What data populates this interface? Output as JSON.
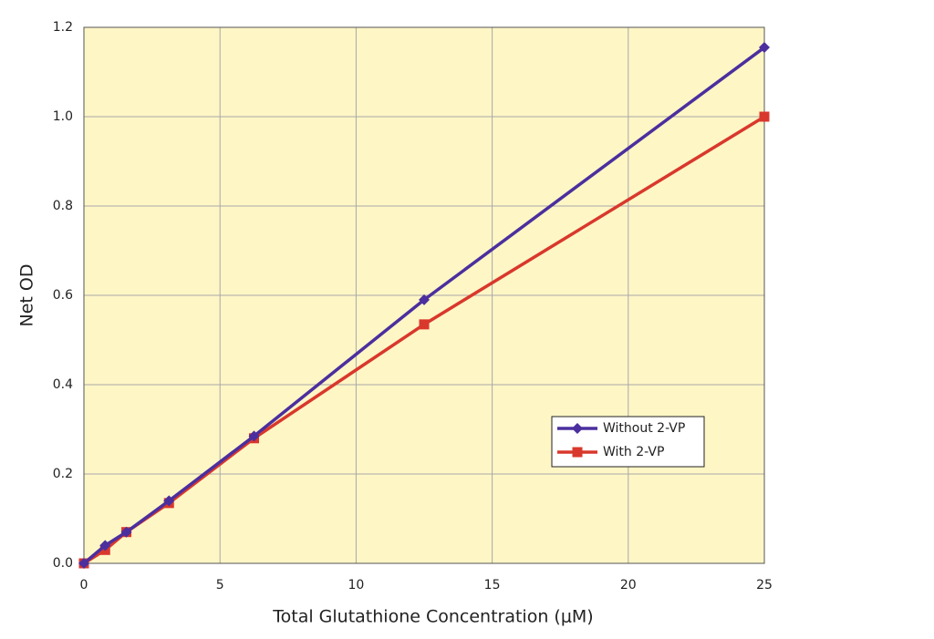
{
  "chart_data": {
    "type": "line",
    "x_label": "Total Glutathione Concentration (μM)",
    "y_label": "Net OD",
    "x": [
      0,
      0.78,
      1.56,
      3.125,
      6.25,
      12.5,
      25
    ],
    "series": [
      {
        "name": "Without 2-VP",
        "color": "#4b2f9e",
        "marker": "diamond",
        "values": [
          0,
          0.04,
          0.07,
          0.14,
          0.285,
          0.59,
          1.155
        ]
      },
      {
        "name": "With 2-VP",
        "color": "#d9382c",
        "marker": "square",
        "values": [
          0,
          0.03,
          0.07,
          0.135,
          0.28,
          0.535,
          1.0
        ]
      }
    ],
    "xlim": [
      0,
      25
    ],
    "xticks": [
      0,
      5,
      10,
      15,
      20,
      25
    ],
    "ylim": [
      0,
      1.2
    ],
    "yticks": [
      {
        "value": 0,
        "label": "0.0"
      },
      0.2,
      0.4,
      0.6,
      0.8,
      {
        "value": 1,
        "label": "1.0"
      },
      1.2
    ],
    "grid": true,
    "plot_background": "#fff6c6",
    "legend_position": "lower right"
  }
}
